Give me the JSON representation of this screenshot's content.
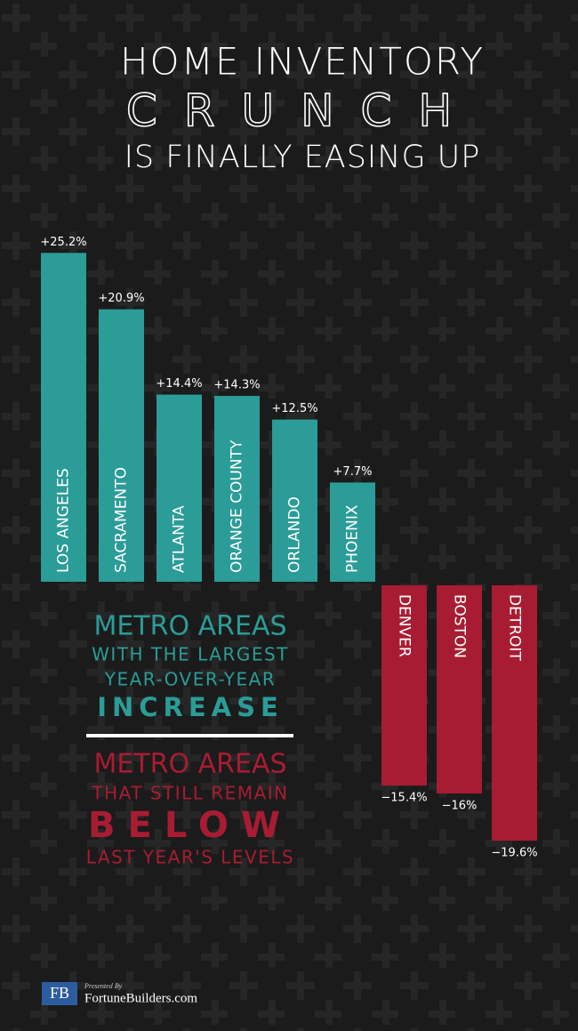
{
  "chart_data": {
    "type": "bar",
    "title_lines": [
      "HOME INVENTORY",
      "CRUNCH",
      "IS FINALLY EASING UP"
    ],
    "categories": [
      "LOS ANGELES",
      "SACRAMENTO",
      "ATLANTA",
      "ORANGE COUNTY",
      "ORLANDO",
      "PHOENIX",
      "DENVER",
      "BOSTON",
      "DETROIT"
    ],
    "values": [
      25.2,
      20.9,
      14.4,
      14.3,
      12.5,
      7.7,
      -15.4,
      -16,
      -19.6
    ],
    "value_labels": [
      "+25.2%",
      "+20.9%",
      "+14.4%",
      "+14.3%",
      "+12.5%",
      "+7.7%",
      "−15.4%",
      "−16%",
      "−19.6%"
    ],
    "colors": [
      "#2b9c97",
      "#2b9c97",
      "#2b9c97",
      "#2b9c97",
      "#2b9c97",
      "#2b9c97",
      "#a81c33",
      "#a81c33",
      "#a81c33"
    ],
    "legend": [
      {
        "color": "#2b9c97",
        "lines": [
          "METRO AREAS",
          "WITH THE LARGEST",
          "YEAR-OVER-YEAR",
          "INCREASE"
        ]
      },
      {
        "color": "#a81c33",
        "lines": [
          "METRO AREAS",
          "THAT STILL REMAIN",
          "BELOW",
          "LAST YEAR'S LEVELS"
        ]
      }
    ]
  },
  "footer": {
    "logo": "FB",
    "presented": "Presented By",
    "site": "FortuneBuilders.com"
  }
}
